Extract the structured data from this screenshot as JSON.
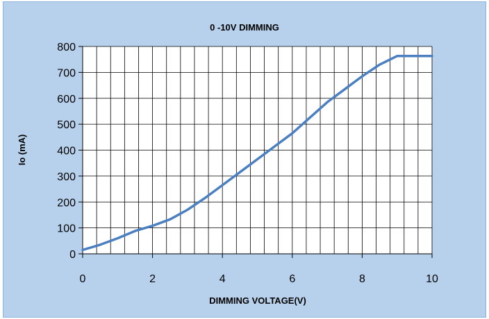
{
  "chart_data": {
    "type": "line",
    "title": "0 -10V DIMMING",
    "xlabel": "DIMMING VOLTAGE(V)",
    "ylabel": "Io (mA)",
    "xlim": [
      0,
      10
    ],
    "ylim": [
      0,
      800
    ],
    "x_ticks": [
      "0",
      "2",
      "4",
      "6",
      "8",
      "10"
    ],
    "y_ticks": [
      "0",
      "100",
      "200",
      "300",
      "400",
      "500",
      "600",
      "700",
      "800"
    ],
    "grid": true,
    "minor_x_step": 0.4,
    "major_y_step": 100,
    "series": [
      {
        "color": "#4a7fc2",
        "x": [
          0,
          0.5,
          1,
          1.5,
          2,
          2.5,
          3,
          3.5,
          4,
          4.5,
          5,
          5.5,
          6,
          6.5,
          7,
          7.5,
          8,
          8.5,
          9,
          9.5,
          10
        ],
        "y": [
          15,
          35,
          60,
          88,
          108,
          133,
          170,
          215,
          265,
          315,
          365,
          415,
          465,
          525,
          585,
          635,
          685,
          730,
          763,
          763,
          763
        ]
      }
    ]
  }
}
